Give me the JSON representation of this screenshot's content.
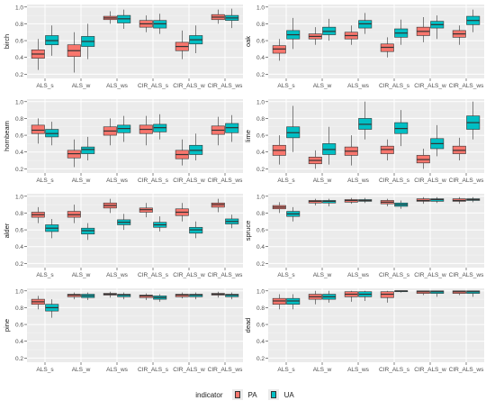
{
  "chart_data": {
    "type": "boxplot",
    "categories": [
      "ALS_s",
      "ALS_w",
      "ALS_ws",
      "CIR_ALS_s",
      "CIR_ALS_w",
      "CIR_ALS_ws"
    ],
    "y_ticks": [
      "0.2",
      "0.4",
      "0.6",
      "0.8",
      "1.0"
    ],
    "ylim": [
      0.15,
      1.03
    ],
    "grid": true,
    "legend": {
      "title": "indicator",
      "position": "bottom",
      "items": [
        {
          "name": "PA",
          "color": "#F8766D"
        },
        {
          "name": "UA",
          "color": "#00BFC4"
        }
      ]
    },
    "panels": [
      {
        "name": "birch",
        "series": [
          {
            "name": "PA",
            "boxes": [
              {
                "min": 0.25,
                "q1": 0.39,
                "median": 0.44,
                "q3": 0.49,
                "max": 0.62
              },
              {
                "min": 0.22,
                "q1": 0.41,
                "median": 0.48,
                "q3": 0.55,
                "max": 0.7
              },
              {
                "min": 0.8,
                "q1": 0.85,
                "median": 0.87,
                "q3": 0.89,
                "max": 0.95
              },
              {
                "min": 0.7,
                "q1": 0.76,
                "median": 0.8,
                "q3": 0.84,
                "max": 0.9
              },
              {
                "min": 0.38,
                "q1": 0.48,
                "median": 0.53,
                "q3": 0.58,
                "max": 0.72
              },
              {
                "min": 0.8,
                "q1": 0.85,
                "median": 0.88,
                "q3": 0.91,
                "max": 0.97
              }
            ]
          },
          {
            "name": "UA",
            "boxes": [
              {
                "min": 0.42,
                "q1": 0.55,
                "median": 0.6,
                "q3": 0.66,
                "max": 0.78
              },
              {
                "min": 0.38,
                "q1": 0.53,
                "median": 0.59,
                "q3": 0.65,
                "max": 0.8
              },
              {
                "min": 0.74,
                "q1": 0.81,
                "median": 0.86,
                "q3": 0.9,
                "max": 0.97
              },
              {
                "min": 0.68,
                "q1": 0.75,
                "median": 0.8,
                "q3": 0.84,
                "max": 0.92
              },
              {
                "min": 0.45,
                "q1": 0.56,
                "median": 0.61,
                "q3": 0.66,
                "max": 0.78
              },
              {
                "min": 0.75,
                "q1": 0.84,
                "median": 0.87,
                "q3": 0.9,
                "max": 0.98
              }
            ]
          }
        ]
      },
      {
        "name": "oak",
        "series": [
          {
            "name": "PA",
            "boxes": [
              {
                "min": 0.36,
                "q1": 0.45,
                "median": 0.5,
                "q3": 0.54,
                "max": 0.62
              },
              {
                "min": 0.55,
                "q1": 0.62,
                "median": 0.65,
                "q3": 0.68,
                "max": 0.76
              },
              {
                "min": 0.55,
                "q1": 0.62,
                "median": 0.66,
                "q3": 0.7,
                "max": 0.78
              },
              {
                "min": 0.4,
                "q1": 0.47,
                "median": 0.52,
                "q3": 0.56,
                "max": 0.64
              },
              {
                "min": 0.58,
                "q1": 0.66,
                "median": 0.71,
                "q3": 0.76,
                "max": 0.88
              },
              {
                "min": 0.55,
                "q1": 0.64,
                "median": 0.68,
                "q3": 0.72,
                "max": 0.78
              }
            ]
          },
          {
            "name": "UA",
            "boxes": [
              {
                "min": 0.5,
                "q1": 0.62,
                "median": 0.67,
                "q3": 0.72,
                "max": 0.87
              },
              {
                "min": 0.6,
                "q1": 0.67,
                "median": 0.71,
                "q3": 0.76,
                "max": 0.86
              },
              {
                "min": 0.68,
                "q1": 0.75,
                "median": 0.8,
                "q3": 0.84,
                "max": 0.93
              },
              {
                "min": 0.55,
                "q1": 0.64,
                "median": 0.69,
                "q3": 0.74,
                "max": 0.85
              },
              {
                "min": 0.62,
                "q1": 0.75,
                "median": 0.79,
                "q3": 0.83,
                "max": 0.9
              },
              {
                "min": 0.7,
                "q1": 0.79,
                "median": 0.84,
                "q3": 0.89,
                "max": 0.97
              }
            ]
          }
        ]
      },
      {
        "name": "hornbeam",
        "series": [
          {
            "name": "PA",
            "boxes": [
              {
                "min": 0.5,
                "q1": 0.62,
                "median": 0.66,
                "q3": 0.72,
                "max": 0.8
              },
              {
                "min": 0.22,
                "q1": 0.33,
                "median": 0.38,
                "q3": 0.42,
                "max": 0.55
              },
              {
                "min": 0.48,
                "q1": 0.6,
                "median": 0.65,
                "q3": 0.7,
                "max": 0.8
              },
              {
                "min": 0.48,
                "q1": 0.62,
                "median": 0.67,
                "q3": 0.72,
                "max": 0.83
              },
              {
                "min": 0.24,
                "q1": 0.32,
                "median": 0.37,
                "q3": 0.42,
                "max": 0.55
              },
              {
                "min": 0.48,
                "q1": 0.61,
                "median": 0.66,
                "q3": 0.71,
                "max": 0.82
              }
            ]
          },
          {
            "name": "UA",
            "boxes": [
              {
                "min": 0.48,
                "q1": 0.58,
                "median": 0.62,
                "q3": 0.67,
                "max": 0.76
              },
              {
                "min": 0.3,
                "q1": 0.38,
                "median": 0.43,
                "q3": 0.46,
                "max": 0.58
              },
              {
                "min": 0.52,
                "q1": 0.63,
                "median": 0.68,
                "q3": 0.72,
                "max": 0.83
              },
              {
                "min": 0.55,
                "q1": 0.64,
                "median": 0.69,
                "q3": 0.73,
                "max": 0.85
              },
              {
                "min": 0.3,
                "q1": 0.37,
                "median": 0.42,
                "q3": 0.48,
                "max": 0.62
              },
              {
                "min": 0.52,
                "q1": 0.63,
                "median": 0.69,
                "q3": 0.74,
                "max": 0.84
              }
            ]
          }
        ]
      },
      {
        "name": "lime",
        "series": [
          {
            "name": "PA",
            "boxes": [
              {
                "min": 0.25,
                "q1": 0.36,
                "median": 0.42,
                "q3": 0.48,
                "max": 0.6
              },
              {
                "min": 0.2,
                "q1": 0.26,
                "median": 0.3,
                "q3": 0.34,
                "max": 0.42
              },
              {
                "min": 0.24,
                "q1": 0.36,
                "median": 0.41,
                "q3": 0.46,
                "max": 0.6
              },
              {
                "min": 0.3,
                "q1": 0.38,
                "median": 0.43,
                "q3": 0.47,
                "max": 0.55
              },
              {
                "min": 0.2,
                "q1": 0.27,
                "median": 0.31,
                "q3": 0.36,
                "max": 0.44
              },
              {
                "min": 0.3,
                "q1": 0.38,
                "median": 0.42,
                "q3": 0.47,
                "max": 0.57
              }
            ]
          },
          {
            "name": "UA",
            "boxes": [
              {
                "min": 0.4,
                "q1": 0.57,
                "median": 0.63,
                "q3": 0.7,
                "max": 0.95
              },
              {
                "min": 0.25,
                "q1": 0.37,
                "median": 0.43,
                "q3": 0.5,
                "max": 0.7
              },
              {
                "min": 0.55,
                "q1": 0.67,
                "median": 0.73,
                "q3": 0.8,
                "max": 1.0
              },
              {
                "min": 0.47,
                "q1": 0.62,
                "median": 0.68,
                "q3": 0.75,
                "max": 0.9
              },
              {
                "min": 0.35,
                "q1": 0.44,
                "median": 0.5,
                "q3": 0.56,
                "max": 0.72
              },
              {
                "min": 0.55,
                "q1": 0.67,
                "median": 0.75,
                "q3": 0.83,
                "max": 1.0
              }
            ]
          }
        ]
      },
      {
        "name": "alder",
        "series": [
          {
            "name": "PA",
            "boxes": [
              {
                "min": 0.68,
                "q1": 0.75,
                "median": 0.78,
                "q3": 0.81,
                "max": 0.87
              },
              {
                "min": 0.68,
                "q1": 0.75,
                "median": 0.78,
                "q3": 0.82,
                "max": 0.9
              },
              {
                "min": 0.8,
                "q1": 0.86,
                "median": 0.89,
                "q3": 0.92,
                "max": 0.97
              },
              {
                "min": 0.75,
                "q1": 0.81,
                "median": 0.84,
                "q3": 0.86,
                "max": 0.92
              },
              {
                "min": 0.7,
                "q1": 0.77,
                "median": 0.81,
                "q3": 0.85,
                "max": 0.92
              },
              {
                "min": 0.81,
                "q1": 0.87,
                "median": 0.9,
                "q3": 0.92,
                "max": 0.97
              }
            ]
          },
          {
            "name": "UA",
            "boxes": [
              {
                "min": 0.5,
                "q1": 0.58,
                "median": 0.62,
                "q3": 0.66,
                "max": 0.73
              },
              {
                "min": 0.48,
                "q1": 0.55,
                "median": 0.59,
                "q3": 0.62,
                "max": 0.68
              },
              {
                "min": 0.6,
                "q1": 0.66,
                "median": 0.69,
                "q3": 0.72,
                "max": 0.79
              },
              {
                "min": 0.58,
                "q1": 0.63,
                "median": 0.66,
                "q3": 0.69,
                "max": 0.76
              },
              {
                "min": 0.5,
                "q1": 0.56,
                "median": 0.6,
                "q3": 0.63,
                "max": 0.7
              },
              {
                "min": 0.62,
                "q1": 0.67,
                "median": 0.7,
                "q3": 0.73,
                "max": 0.78
              }
            ]
          }
        ]
      },
      {
        "name": "spruce",
        "series": [
          {
            "name": "PA",
            "boxes": [
              {
                "min": 0.8,
                "q1": 0.85,
                "median": 0.87,
                "q3": 0.89,
                "max": 0.93
              },
              {
                "min": 0.89,
                "q1": 0.92,
                "median": 0.94,
                "q3": 0.95,
                "max": 0.97
              },
              {
                "min": 0.91,
                "q1": 0.93,
                "median": 0.95,
                "q3": 0.96,
                "max": 0.98
              },
              {
                "min": 0.88,
                "q1": 0.91,
                "median": 0.93,
                "q3": 0.95,
                "max": 0.97
              },
              {
                "min": 0.91,
                "q1": 0.94,
                "median": 0.95,
                "q3": 0.97,
                "max": 0.99
              },
              {
                "min": 0.91,
                "q1": 0.94,
                "median": 0.95,
                "q3": 0.97,
                "max": 0.99
              }
            ]
          },
          {
            "name": "UA",
            "boxes": [
              {
                "min": 0.7,
                "q1": 0.76,
                "median": 0.79,
                "q3": 0.82,
                "max": 0.87
              },
              {
                "min": 0.88,
                "q1": 0.92,
                "median": 0.94,
                "q3": 0.95,
                "max": 0.97
              },
              {
                "min": 0.92,
                "q1": 0.94,
                "median": 0.95,
                "q3": 0.96,
                "max": 0.98
              },
              {
                "min": 0.85,
                "q1": 0.88,
                "median": 0.9,
                "q3": 0.92,
                "max": 0.95
              },
              {
                "min": 0.92,
                "q1": 0.94,
                "median": 0.96,
                "q3": 0.97,
                "max": 0.99
              },
              {
                "min": 0.93,
                "q1": 0.95,
                "median": 0.96,
                "q3": 0.97,
                "max": 0.99
              }
            ]
          }
        ]
      },
      {
        "name": "pine",
        "series": [
          {
            "name": "PA",
            "boxes": [
              {
                "min": 0.78,
                "q1": 0.84,
                "median": 0.87,
                "q3": 0.9,
                "max": 0.94
              },
              {
                "min": 0.9,
                "q1": 0.93,
                "median": 0.95,
                "q3": 0.96,
                "max": 0.98
              },
              {
                "min": 0.92,
                "q1": 0.95,
                "median": 0.96,
                "q3": 0.97,
                "max": 0.99
              },
              {
                "min": 0.89,
                "q1": 0.92,
                "median": 0.94,
                "q3": 0.95,
                "max": 0.97
              },
              {
                "min": 0.91,
                "q1": 0.93,
                "median": 0.95,
                "q3": 0.96,
                "max": 0.98
              },
              {
                "min": 0.92,
                "q1": 0.95,
                "median": 0.96,
                "q3": 0.97,
                "max": 0.99
              }
            ]
          },
          {
            "name": "UA",
            "boxes": [
              {
                "min": 0.68,
                "q1": 0.76,
                "median": 0.8,
                "q3": 0.84,
                "max": 0.9
              },
              {
                "min": 0.89,
                "q1": 0.92,
                "median": 0.94,
                "q3": 0.96,
                "max": 0.98
              },
              {
                "min": 0.9,
                "q1": 0.93,
                "median": 0.95,
                "q3": 0.96,
                "max": 0.98
              },
              {
                "min": 0.87,
                "q1": 0.9,
                "median": 0.92,
                "q3": 0.94,
                "max": 0.96
              },
              {
                "min": 0.9,
                "q1": 0.93,
                "median": 0.95,
                "q3": 0.96,
                "max": 0.98
              },
              {
                "min": 0.9,
                "q1": 0.93,
                "median": 0.95,
                "q3": 0.96,
                "max": 0.98
              }
            ]
          }
        ]
      },
      {
        "name": "dead",
        "series": [
          {
            "name": "PA",
            "boxes": [
              {
                "min": 0.78,
                "q1": 0.84,
                "median": 0.88,
                "q3": 0.91,
                "max": 0.96
              },
              {
                "min": 0.84,
                "q1": 0.9,
                "median": 0.93,
                "q3": 0.96,
                "max": 1.0
              },
              {
                "min": 0.87,
                "q1": 0.93,
                "median": 0.96,
                "q3": 0.99,
                "max": 1.0
              },
              {
                "min": 0.86,
                "q1": 0.92,
                "median": 0.96,
                "q3": 0.99,
                "max": 1.0
              },
              {
                "min": 0.95,
                "q1": 0.97,
                "median": 0.99,
                "q3": 1.0,
                "max": 1.0
              },
              {
                "min": 0.95,
                "q1": 0.97,
                "median": 0.99,
                "q3": 1.0,
                "max": 1.0
              }
            ]
          },
          {
            "name": "UA",
            "boxes": [
              {
                "min": 0.78,
                "q1": 0.84,
                "median": 0.88,
                "q3": 0.91,
                "max": 0.96
              },
              {
                "min": 0.86,
                "q1": 0.9,
                "median": 0.93,
                "q3": 0.96,
                "max": 1.0
              },
              {
                "min": 0.88,
                "q1": 0.93,
                "median": 0.96,
                "q3": 0.99,
                "max": 1.0
              },
              {
                "min": 0.98,
                "q1": 0.99,
                "median": 1.0,
                "q3": 1.0,
                "max": 1.0
              },
              {
                "min": 0.93,
                "q1": 0.97,
                "median": 0.99,
                "q3": 1.0,
                "max": 1.0
              },
              {
                "min": 0.93,
                "q1": 0.97,
                "median": 0.99,
                "q3": 1.0,
                "max": 1.0
              }
            ]
          }
        ]
      }
    ]
  }
}
